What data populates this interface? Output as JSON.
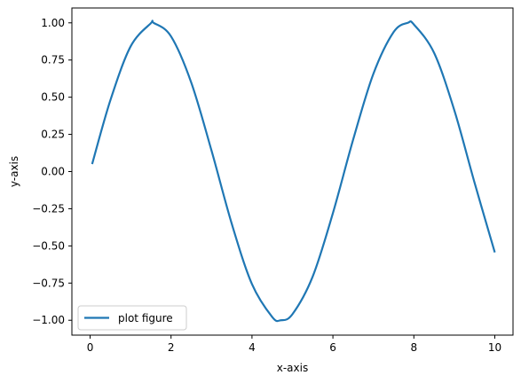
{
  "chart_data": {
    "type": "line",
    "title": "",
    "xlabel": "x-axis",
    "ylabel": "y-axis",
    "xlim": [
      -0.45,
      10.45
    ],
    "ylim": [
      -1.1,
      1.1
    ],
    "xticks": [
      0,
      2,
      4,
      6,
      8,
      10
    ],
    "xtick_labels": [
      "0",
      "2",
      "4",
      "6",
      "8",
      "10"
    ],
    "yticks": [
      -1.0,
      -0.75,
      -0.5,
      -0.25,
      0.0,
      0.25,
      0.5,
      0.75,
      1.0
    ],
    "ytick_labels": [
      "−1.00",
      "−0.75",
      "−0.50",
      "−0.25",
      "0.00",
      "0.25",
      "0.50",
      "0.75",
      "1.00"
    ],
    "grid": false,
    "legend_position": "lower-left",
    "series": [
      {
        "name": "plot figure",
        "color": "#1f77b4",
        "x": [
          0.05,
          0.5,
          1.0,
          1.5,
          1.57,
          2.0,
          2.5,
          3.0,
          3.5,
          4.0,
          4.5,
          4.71,
          5.0,
          5.5,
          6.0,
          6.5,
          7.0,
          7.5,
          7.85,
          8.0,
          8.5,
          9.0,
          9.5,
          10.0
        ],
        "y": [
          0.05,
          0.479,
          0.841,
          0.997,
          1.0,
          0.909,
          0.598,
          0.141,
          -0.351,
          -0.757,
          -0.978,
          -1.0,
          -0.959,
          -0.706,
          -0.279,
          0.215,
          0.657,
          0.938,
          1.0,
          0.989,
          0.798,
          0.412,
          -0.075,
          -0.544
        ]
      }
    ]
  }
}
